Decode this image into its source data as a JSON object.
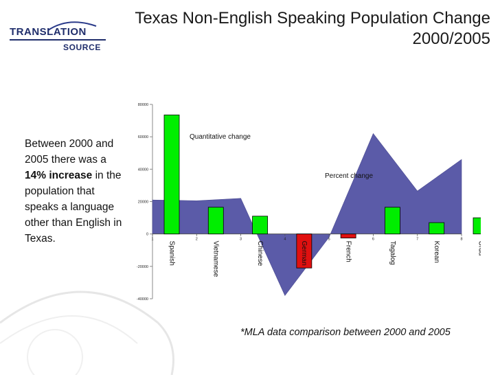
{
  "slide": {
    "title": "Texas Non-English Speaking Population Change 2000/2005",
    "logo": {
      "line1": "TRANSLATION",
      "line2": "SOURCE"
    },
    "side_text": {
      "part1": "Between 2000 and 2005 there was a ",
      "bold1": "14%",
      "part2": " ",
      "bold2": "increase",
      "part3": " in the population that speaks a language other than English in Texas."
    },
    "footnote": "*MLA data comparison between 2000 and 2005",
    "colors": {
      "bar_positive": "#00ee00",
      "bar_negative": "#e01010",
      "area": "#5b5ba8",
      "text": "#111111"
    }
  },
  "chart_data": {
    "type": "bar",
    "categories": [
      "Spanish",
      "Vietnamese",
      "Chinese",
      "German",
      "French",
      "Tagalog",
      "Korean",
      "Urdu"
    ],
    "series": [
      {
        "name": "Quantitative change",
        "values": [
          73500,
          16500,
          11000,
          -21000,
          -2500,
          16500,
          7000,
          10000
        ]
      },
      {
        "name": "Percent change",
        "type": "area",
        "values": [
          21000,
          20500,
          22000,
          -38000,
          -2000,
          62000,
          26500,
          46000
        ]
      }
    ],
    "yticks": [
      "80000",
      "60000",
      "40000",
      "20000",
      "0",
      "-20000",
      "-40000"
    ],
    "xticks": [
      "1",
      "2",
      "3",
      "4",
      "5",
      "6",
      "7",
      "8"
    ],
    "ylim": [
      -40000,
      80000
    ],
    "annotations": [
      "Quantitative change",
      "Percent change"
    ]
  }
}
